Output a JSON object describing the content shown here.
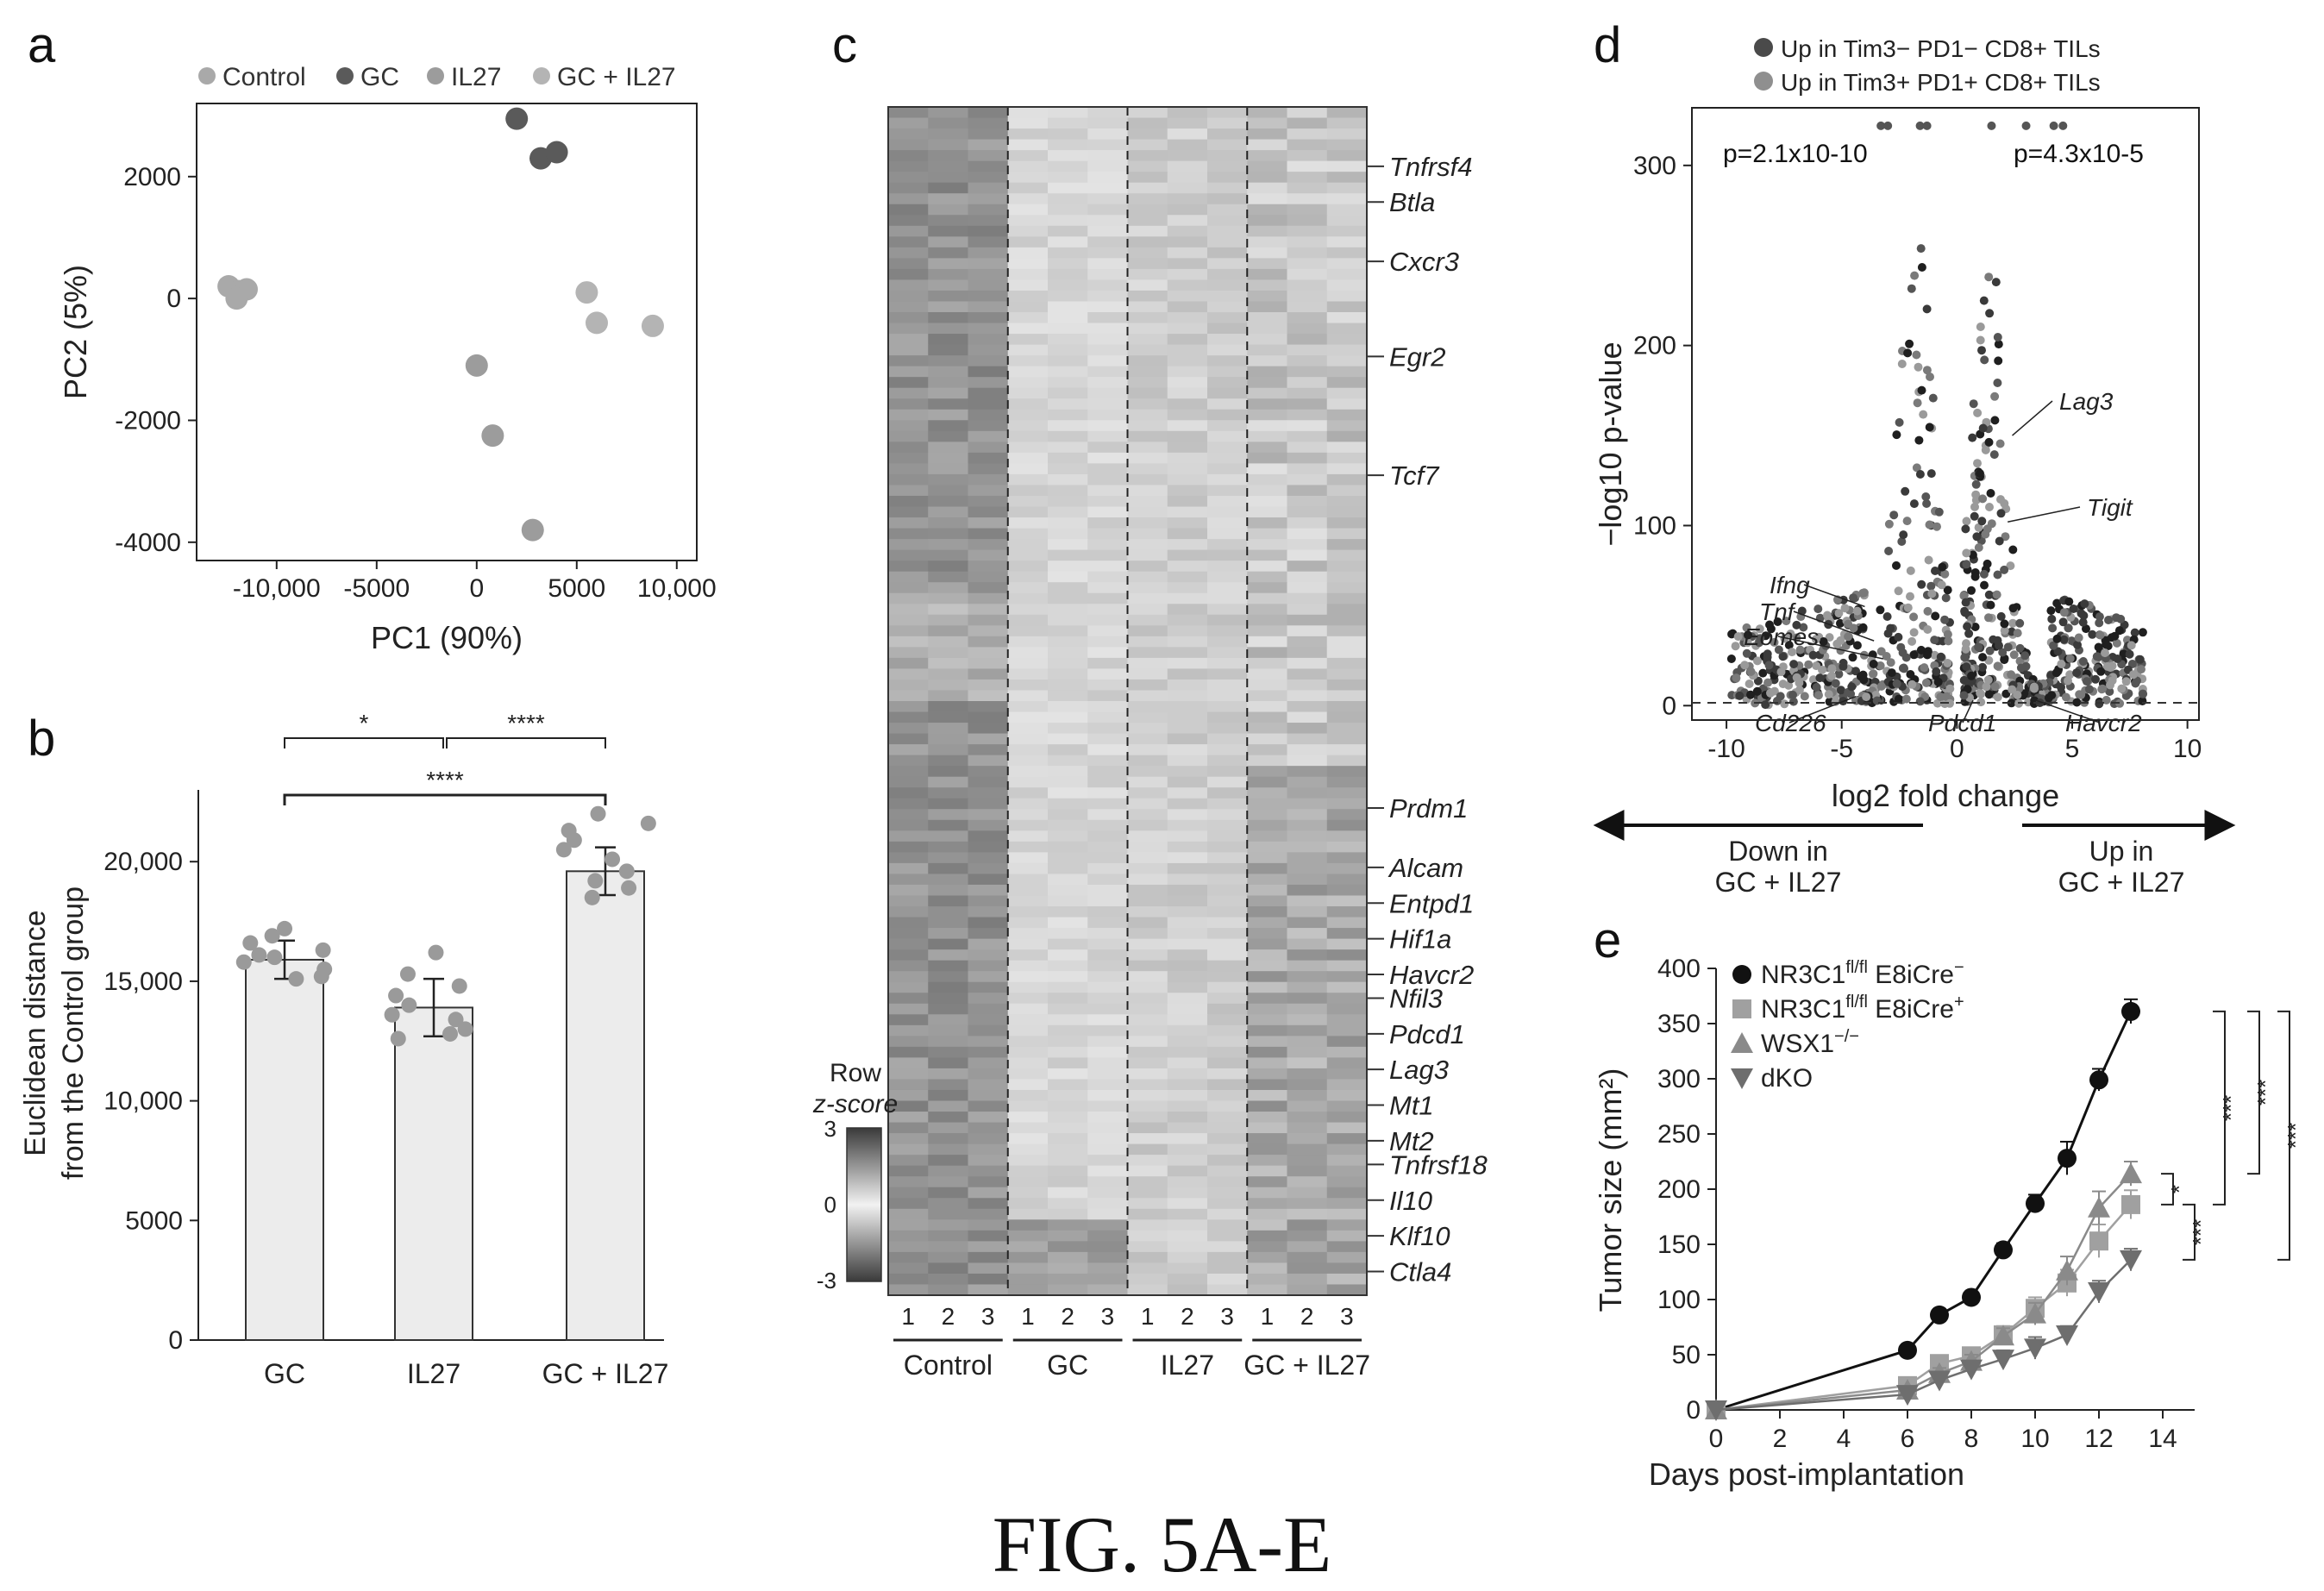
{
  "caption": "FIG. 5A-E",
  "colors": {
    "control": "#a9a9a9",
    "gc": "#5a5a5a",
    "il27": "#9c9c9c",
    "gcil27": "#b4b4b4",
    "dark": "#2b2b2b",
    "mid": "#888888",
    "light": "#bdbdbd",
    "bar_fill": "#ececec"
  },
  "panels": {
    "a": "a",
    "b": "b",
    "c": "c",
    "d": "d",
    "e": "e"
  },
  "chart_data": [
    {
      "panel": "a",
      "type": "scatter",
      "xlabel": "PC1 (90%)",
      "ylabel": "PC2 (5%)",
      "xlim": [
        -14000,
        11000
      ],
      "ylim": [
        -4300,
        3200
      ],
      "xticks": [
        -10000,
        -5000,
        0,
        5000,
        10000
      ],
      "xtick_labels": [
        "-10,000",
        "-5000",
        "0",
        "5000",
        "10,000"
      ],
      "yticks": [
        -4000,
        -2000,
        0,
        2000
      ],
      "ytick_labels": [
        "-4000",
        "-2000",
        "0",
        "2000"
      ],
      "legend": [
        "Control",
        "GC",
        "IL27",
        "GC + IL27"
      ],
      "series": [
        {
          "name": "Control",
          "points": [
            [
              -12400,
              200
            ],
            [
              -11900,
              120
            ],
            [
              -11500,
              150
            ],
            [
              -12000,
              0
            ]
          ]
        },
        {
          "name": "GC",
          "points": [
            [
              2000,
              2950
            ],
            [
              3200,
              2300
            ],
            [
              4000,
              2400
            ]
          ]
        },
        {
          "name": "IL27",
          "points": [
            [
              0,
              -1100
            ],
            [
              800,
              -2250
            ],
            [
              2800,
              -3800
            ]
          ]
        },
        {
          "name": "GC + IL27",
          "points": [
            [
              5500,
              100
            ],
            [
              6000,
              -400
            ],
            [
              8800,
              -450
            ]
          ]
        }
      ]
    },
    {
      "panel": "b",
      "type": "bar",
      "categories": [
        "GC",
        "IL27",
        "GC + IL27"
      ],
      "values": [
        15900,
        13900,
        19600
      ],
      "errors": [
        800,
        1200,
        1000
      ],
      "ylabel_lines": [
        "Euclidean distance",
        "from the Control group"
      ],
      "ylim": [
        0,
        23000
      ],
      "yticks": [
        0,
        5000,
        10000,
        15000,
        20000
      ],
      "ytick_labels": [
        "0",
        "5000",
        "10,000",
        "15,000",
        "20,000"
      ],
      "points": [
        [
          15200,
          15500,
          15800,
          16000,
          16300,
          16600,
          16900,
          17200,
          15100,
          16100
        ],
        [
          12600,
          13000,
          13400,
          13600,
          14000,
          14400,
          14800,
          15300,
          16200,
          12800
        ],
        [
          18500,
          18900,
          19200,
          19600,
          20100,
          20500,
          20900,
          21600,
          22000,
          21300
        ]
      ],
      "significance": [
        {
          "from": 0,
          "to": 1,
          "label": "*"
        },
        {
          "from": 1,
          "to": 2,
          "label": "****"
        },
        {
          "from": 0,
          "to": 2,
          "label": "****"
        }
      ]
    },
    {
      "panel": "c",
      "type": "heatmap",
      "groups": [
        "Control",
        "GC",
        "IL27",
        "GC + IL27"
      ],
      "replicates": [
        "1",
        "2",
        "3"
      ],
      "genes": [
        "Tnfrsf4",
        "Btla",
        "Cxcr3",
        "Egr2",
        "Tcf7",
        "Prdm1",
        "Alcam",
        "Entpd1",
        "Hif1a",
        "Havcr2",
        "Nfil3",
        "Pdcd1",
        "Lag3",
        "Mt1",
        "Mt2",
        "Tnfrsf18",
        "Il10",
        "Klf10",
        "Ctla4"
      ],
      "gene_row_fraction": [
        0.05,
        0.08,
        0.13,
        0.21,
        0.31,
        0.59,
        0.64,
        0.67,
        0.7,
        0.73,
        0.75,
        0.78,
        0.81,
        0.84,
        0.87,
        0.89,
        0.92,
        0.95,
        0.98
      ],
      "colorbar_title_lines": [
        "Row",
        "z-score"
      ],
      "colorbar_ticks": [
        "3",
        "0",
        "-3"
      ]
    },
    {
      "panel": "d",
      "type": "scatter",
      "xlabel": "log2 fold change",
      "ylabel": "−log10 p-value",
      "xlim": [
        -11.5,
        10.5
      ],
      "ylim": [
        -8,
        332
      ],
      "xticks": [
        -10,
        -5,
        0,
        5,
        10
      ],
      "xtick_labels": [
        "-10",
        "-5",
        "0",
        "5",
        "10"
      ],
      "yticks": [
        0,
        100,
        200,
        300
      ],
      "ytick_labels": [
        "0",
        "100",
        "200",
        "300"
      ],
      "legend": [
        "Up in Tim3− PD1− CD8+ TILs",
        "Up in Tim3+ PD1+ CD8+ TILs"
      ],
      "p_left": "p=2.1x10-10",
      "p_right": "p=4.3x10-5",
      "annotations": [
        {
          "label": "Lag3",
          "x": 2.4,
          "y": 150
        },
        {
          "label": "Tigit",
          "x": 2.2,
          "y": 102
        },
        {
          "label": "Ifng",
          "x": -4.0,
          "y": 55
        },
        {
          "label": "Tnf",
          "x": -3.6,
          "y": 36
        },
        {
          "label": "Eomes",
          "x": -3.2,
          "y": 26
        },
        {
          "label": "Cd226",
          "x": -4.4,
          "y": 5
        },
        {
          "label": "Pdcd1",
          "x": 0.7,
          "y": 3
        },
        {
          "label": "Havcr2",
          "x": 3.2,
          "y": 4
        }
      ],
      "arrow_left_lines": [
        "Down in",
        "GC + IL27"
      ],
      "arrow_right_lines": [
        "Up in",
        "GC + IL27"
      ]
    },
    {
      "panel": "e",
      "type": "line",
      "xlabel": "Days post-implantation",
      "ylabel": "Tumor size (mm²)",
      "xlim": [
        0,
        15
      ],
      "ylim": [
        0,
        400
      ],
      "xticks": [
        0,
        2,
        4,
        6,
        8,
        10,
        12,
        14
      ],
      "xtick_labels": [
        "0",
        "2",
        "4",
        "6",
        "8",
        "10",
        "12",
        "14"
      ],
      "yticks": [
        0,
        50,
        100,
        150,
        200,
        250,
        300,
        350,
        400
      ],
      "ytick_labels": [
        "0",
        "50",
        "100",
        "150",
        "200",
        "250",
        "300",
        "350",
        "400"
      ],
      "x": [
        0,
        6,
        7,
        8,
        9,
        10,
        11,
        12,
        13
      ],
      "series": [
        {
          "name": "NR3C1fl/fl E8iCre−",
          "marker": "circle",
          "values": [
            0,
            54,
            86,
            102,
            145,
            187,
            228,
            299,
            361
          ],
          "errors": [
            0,
            3,
            4,
            4,
            6,
            8,
            15,
            10,
            11
          ]
        },
        {
          "name": "NR3C1fl/fl E8iCre+",
          "marker": "square",
          "values": [
            0,
            22,
            42,
            49,
            68,
            92,
            115,
            153,
            186
          ],
          "errors": [
            0,
            3,
            5,
            6,
            8,
            10,
            12,
            15,
            13
          ]
        },
        {
          "name": "WSX1−/−",
          "marker": "triangle-up",
          "values": [
            0,
            18,
            33,
            44,
            67,
            87,
            126,
            183,
            214
          ],
          "errors": [
            0,
            3,
            5,
            6,
            7,
            10,
            13,
            15,
            11
          ]
        },
        {
          "name": "dKO",
          "marker": "triangle-down",
          "values": [
            0,
            14,
            27,
            37,
            46,
            56,
            68,
            107,
            136
          ],
          "errors": [
            0,
            3,
            4,
            5,
            8,
            10,
            8,
            10,
            10
          ]
        }
      ],
      "legend_lines": [
        {
          "base": "NR3C1",
          "sup": "fl/fl",
          "rest": " E8iCre",
          "sup2": "−"
        },
        {
          "base": "NR3C1",
          "sup": "fl/fl",
          "rest": " E8iCre",
          "sup2": "+"
        },
        {
          "base": "WSX1",
          "sup": "−/−",
          "rest": "",
          "sup2": ""
        },
        {
          "base": "dKO",
          "sup": "",
          "rest": "",
          "sup2": ""
        }
      ],
      "significance": [
        {
          "label": "***",
          "level": "outer1"
        },
        {
          "label": "***",
          "level": "outer2"
        },
        {
          "label": "***",
          "level": "outer3"
        },
        {
          "label": "*",
          "level": "inner1"
        },
        {
          "label": "***",
          "level": "inner2"
        }
      ]
    }
  ]
}
